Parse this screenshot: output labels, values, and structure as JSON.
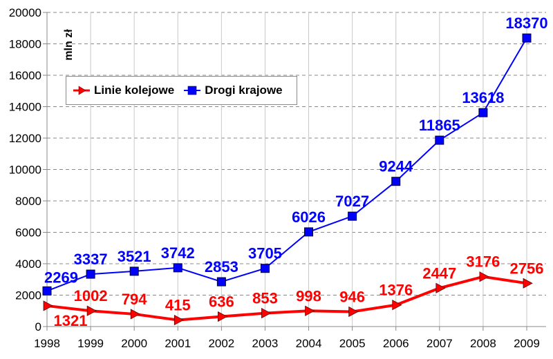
{
  "chart_data": {
    "type": "line",
    "title": "",
    "xlabel": "",
    "ylabel": "mln zł",
    "ylim": [
      0,
      20000
    ],
    "yticks": [
      0,
      2000,
      4000,
      6000,
      8000,
      10000,
      12000,
      14000,
      16000,
      18000,
      20000
    ],
    "grid": true,
    "legend_position": "top-left",
    "categories": [
      "1998",
      "1999",
      "2000",
      "2001",
      "2002",
      "2003",
      "2004",
      "2005",
      "2006",
      "2007",
      "2008",
      "2009"
    ],
    "series": [
      {
        "name": "Linie kolejowe",
        "color": "#ff0000",
        "marker": "triangle-right",
        "values": [
          1321,
          1002,
          794,
          415,
          636,
          853,
          998,
          946,
          1376,
          2447,
          3176,
          2756
        ]
      },
      {
        "name": "Drogi krajowe",
        "color": "#0000ff",
        "marker": "square",
        "values": [
          2269,
          3337,
          3521,
          3742,
          2853,
          3705,
          6026,
          7027,
          9244,
          11865,
          13618,
          18370
        ]
      }
    ]
  }
}
